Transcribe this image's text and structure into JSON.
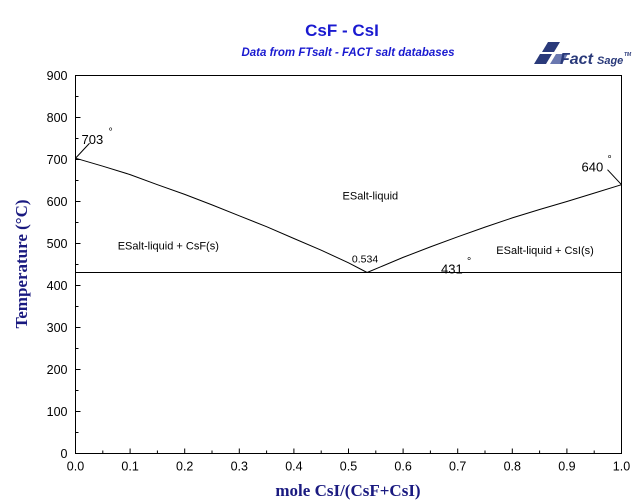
{
  "chart_data": {
    "type": "line",
    "title": "CsF - CsI",
    "subtitle": "Data from FTsalt - FACT salt databases",
    "xlabel": "mole CsI/(CsF+CsI)",
    "ylabel": "Temperature (°C)",
    "xlim": [
      0,
      1
    ],
    "ylim": [
      0,
      900
    ],
    "x_ticks": [
      "0.0",
      "0.1",
      "0.2",
      "0.3",
      "0.4",
      "0.5",
      "0.6",
      "0.7",
      "0.8",
      "0.9",
      "1.0"
    ],
    "y_ticks": [
      "0",
      "100",
      "200",
      "300",
      "400",
      "500",
      "600",
      "700",
      "800",
      "900"
    ],
    "grid": false,
    "series": [
      {
        "values": [
          [
            0.0,
            703
          ],
          [
            0.05,
            684
          ],
          [
            0.1,
            664
          ],
          [
            0.15,
            640
          ],
          [
            0.2,
            617
          ],
          [
            0.25,
            592
          ],
          [
            0.3,
            566
          ],
          [
            0.35,
            540
          ],
          [
            0.4,
            512
          ],
          [
            0.45,
            484
          ],
          [
            0.5,
            454
          ],
          [
            0.534,
            431
          ]
        ]
      },
      {
        "values": [
          [
            0.534,
            431
          ],
          [
            0.6,
            467
          ],
          [
            0.65,
            492
          ],
          [
            0.7,
            516
          ],
          [
            0.75,
            539
          ],
          [
            0.8,
            561
          ],
          [
            0.85,
            581
          ],
          [
            0.9,
            600
          ],
          [
            0.95,
            620
          ],
          [
            1.0,
            640
          ]
        ]
      },
      {
        "values": [
          [
            0.0,
            431
          ],
          [
            1.0,
            431
          ]
        ]
      }
    ],
    "annotations": [
      {
        "text": "703",
        "degree": "°",
        "x": 0.0,
        "y": 703
      },
      {
        "text": "640",
        "degree": "°",
        "x": 1.0,
        "y": 640
      },
      {
        "text": "431",
        "degree": "°",
        "x": 0.534,
        "y": 431
      },
      {
        "text": "0.534",
        "x": 0.534,
        "y": 431
      }
    ],
    "regions": [
      {
        "text": "ESalt-liquid",
        "x": 0.54,
        "y": 605
      },
      {
        "text": "ESalt-liquid + CsF(s)",
        "x": 0.17,
        "y": 486
      },
      {
        "text": "ESalt-liquid + CsI(s)",
        "x": 0.86,
        "y": 475
      }
    ]
  },
  "logo": {
    "text_main": "Fact",
    "text_secondary": "Sage",
    "trademark": "TM"
  }
}
